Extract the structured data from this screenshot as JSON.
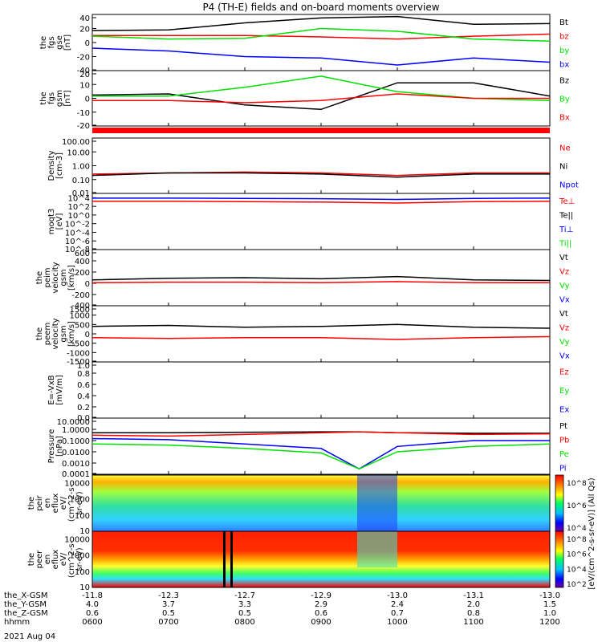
{
  "title": "P4 (TH-E) fields and on-board moments overview",
  "date": "2021 Aug 04",
  "colors": {
    "black": "#000000",
    "red": "#ff0000",
    "green": "#00e000",
    "blue": "#0000ff"
  },
  "chart_data": [
    {
      "type": "line",
      "ylabel": [
        "the",
        "fgs",
        "gse",
        "[nT]"
      ],
      "yticks": [
        "40",
        "20",
        "0",
        "-20",
        "-40"
      ],
      "ylim": [
        -40,
        40
      ],
      "legend": [
        {
          "label": "Bt",
          "color": "black"
        },
        {
          "label": "bz",
          "color": "red"
        },
        {
          "label": "by",
          "color": "green"
        },
        {
          "label": "bx",
          "color": "blue"
        }
      ],
      "x_hours": [
        6.0,
        7.0,
        8.0,
        9.0,
        10.0,
        11.0,
        12.0
      ],
      "series": [
        {
          "name": "Bt",
          "color": "black",
          "values": [
            17,
            18,
            28,
            35,
            37,
            26,
            27
          ]
        },
        {
          "name": "bz",
          "color": "red",
          "values": [
            10,
            10,
            10,
            8,
            5,
            9,
            12
          ]
        },
        {
          "name": "by",
          "color": "green",
          "values": [
            9,
            5,
            6,
            20,
            16,
            5,
            2
          ]
        },
        {
          "name": "bx",
          "color": "blue",
          "values": [
            -8,
            -12,
            -20,
            -22,
            -32,
            -22,
            -28
          ]
        }
      ]
    },
    {
      "type": "line",
      "ylabel": [
        "the",
        "fgs",
        "gsm",
        "[nT]"
      ],
      "yticks": [
        "20",
        "10",
        "0",
        "-10",
        "-20"
      ],
      "ylim": [
        -25,
        25
      ],
      "legend": [
        {
          "label": "Bz",
          "color": "black"
        },
        {
          "label": "By",
          "color": "green"
        },
        {
          "label": "Bx",
          "color": "red"
        }
      ],
      "x_hours": [
        6.0,
        7.0,
        8.0,
        9.0,
        10.0,
        11.0,
        12.0
      ],
      "series": [
        {
          "name": "Bz",
          "color": "black",
          "values": [
            3,
            4,
            -6,
            -10,
            14,
            14,
            2
          ]
        },
        {
          "name": "By",
          "color": "green",
          "values": [
            2,
            2,
            10,
            20,
            6,
            0,
            -2
          ]
        },
        {
          "name": "Bx",
          "color": "red",
          "values": [
            -2,
            -2,
            -4,
            -2,
            4,
            0,
            0
          ]
        }
      ]
    },
    {
      "type": "line",
      "ylabel": [
        "Density",
        "[cm-3]"
      ],
      "yticks": [
        "100.00",
        "10.00",
        "1.00",
        "0.10",
        "0.01"
      ],
      "ylim": [
        0.01,
        100
      ],
      "yscale": "log",
      "legend": [
        {
          "label": "Ne",
          "color": "red"
        },
        {
          "label": "Ni",
          "color": "black"
        },
        {
          "label": "Npot",
          "color": "blue"
        }
      ],
      "x_hours": [
        6.0,
        7.0,
        8.0,
        9.0,
        10.0,
        11.0,
        12.0
      ],
      "series": [
        {
          "name": "Ne",
          "color": "red",
          "values": [
            0.25,
            0.3,
            0.35,
            0.3,
            0.2,
            0.3,
            0.3
          ]
        },
        {
          "name": "Ni",
          "color": "black",
          "values": [
            0.2,
            0.3,
            0.3,
            0.25,
            0.15,
            0.25,
            0.25
          ]
        }
      ]
    },
    {
      "type": "line",
      "ylabel": [
        "moqt3",
        "[eV]"
      ],
      "yticks": [
        "10^4",
        "10^2",
        "10^0",
        "10^-2",
        "10^-4",
        "10^-6",
        "10^-8"
      ],
      "ylim": [
        1e-08,
        100000
      ],
      "yscale": "log",
      "legend": [
        {
          "label": "Te⊥",
          "color": "red"
        },
        {
          "label": "Te||",
          "color": "black"
        },
        {
          "label": "Ti⊥",
          "color": "blue"
        },
        {
          "label": "Ti||",
          "color": "green"
        }
      ],
      "x_hours": [
        6.0,
        7.0,
        8.0,
        9.0,
        10.0,
        11.0,
        12.0
      ],
      "series": [
        {
          "name": "Ti⊥",
          "color": "blue",
          "values": [
            8000,
            8000,
            7000,
            6000,
            4000,
            7000,
            8000
          ]
        },
        {
          "name": "Te⊥",
          "color": "red",
          "values": [
            1500,
            1500,
            1200,
            1000,
            600,
            1200,
            1500
          ]
        }
      ]
    },
    {
      "type": "line",
      "ylabel": [
        "the",
        "peim",
        "velocity",
        "gsm",
        "[km/s]"
      ],
      "yticks": [
        "600",
        "400",
        "200",
        "0",
        "-200",
        "-400"
      ],
      "ylim": [
        -400,
        600
      ],
      "legend": [
        {
          "label": "Vt",
          "color": "black"
        },
        {
          "label": "Vz",
          "color": "red"
        },
        {
          "label": "Vy",
          "color": "green"
        },
        {
          "label": "Vx",
          "color": "blue"
        }
      ],
      "x_hours": [
        6.0,
        7.0,
        8.0,
        9.0,
        10.0,
        11.0,
        12.0
      ],
      "series": [
        {
          "name": "Vt",
          "color": "black",
          "values": [
            60,
            90,
            100,
            80,
            120,
            60,
            50
          ]
        },
        {
          "name": "Vz",
          "color": "red",
          "values": [
            10,
            20,
            20,
            10,
            30,
            10,
            10
          ]
        }
      ]
    },
    {
      "type": "line",
      "ylabel": [
        "the",
        "peem",
        "velocity",
        "gsm",
        "[km/s]"
      ],
      "yticks": [
        "1500",
        "1000",
        "500",
        "0",
        "-500",
        "-1000",
        "-1500"
      ],
      "ylim": [
        -1500,
        1500
      ],
      "legend": [
        {
          "label": "Vt",
          "color": "black"
        },
        {
          "label": "Vz",
          "color": "red"
        },
        {
          "label": "Vy",
          "color": "green"
        },
        {
          "label": "Vx",
          "color": "blue"
        }
      ],
      "x_hours": [
        6.0,
        7.0,
        8.0,
        9.0,
        10.0,
        11.0,
        12.0
      ],
      "series": [
        {
          "name": "Vt",
          "color": "black",
          "values": [
            400,
            450,
            350,
            400,
            500,
            350,
            300
          ]
        },
        {
          "name": "Vz",
          "color": "red",
          "values": [
            -200,
            -250,
            -200,
            -200,
            -300,
            -200,
            -150
          ]
        }
      ]
    },
    {
      "type": "line",
      "ylabel": [
        "E=-VxB",
        "[mV/m]"
      ],
      "yticks": [
        "1.0",
        "0.8",
        "0.6",
        "0.4",
        "0.2",
        "0.0"
      ],
      "ylim": [
        0,
        1
      ],
      "legend": [
        {
          "label": "Ez",
          "color": "red"
        },
        {
          "label": "Ey",
          "color": "green"
        },
        {
          "label": "Ex",
          "color": "blue"
        }
      ],
      "series": []
    },
    {
      "type": "line",
      "ylabel": [
        "Pressure",
        "[nPa]"
      ],
      "yticks": [
        "10.0000",
        "1.0000",
        "0.1000",
        "0.0100",
        "0.0010",
        "0.0001"
      ],
      "ylim": [
        0.0001,
        10
      ],
      "yscale": "log",
      "legend": [
        {
          "label": "Pt",
          "color": "black"
        },
        {
          "label": "Pb",
          "color": "red"
        },
        {
          "label": "Pe",
          "color": "green"
        },
        {
          "label": "Pi",
          "color": "blue"
        }
      ],
      "x_hours": [
        6.0,
        7.0,
        8.0,
        9.0,
        9.5,
        10.0,
        11.0,
        12.0
      ],
      "series": [
        {
          "name": "Pt",
          "color": "black",
          "values": [
            0.5,
            0.5,
            0.55,
            0.6,
            0.6,
            0.5,
            0.45,
            0.45
          ]
        },
        {
          "name": "Pb",
          "color": "red",
          "values": [
            0.3,
            0.25,
            0.35,
            0.5,
            0.6,
            0.5,
            0.35,
            0.4
          ]
        },
        {
          "name": "Pi",
          "color": "blue",
          "values": [
            0.15,
            0.12,
            0.05,
            0.02,
            0.0003,
            0.03,
            0.1,
            0.1
          ]
        },
        {
          "name": "Pe",
          "color": "green",
          "values": [
            0.05,
            0.04,
            0.02,
            0.008,
            0.0003,
            0.01,
            0.03,
            0.05
          ]
        }
      ]
    },
    {
      "type": "heatmap",
      "ylabel": [
        "the",
        "peir",
        "en",
        "eflux",
        "eV/",
        "(cm^2-s-",
        "sr-eV)"
      ],
      "yticks": [
        "10000",
        "1000",
        "100",
        "10"
      ],
      "ylim": [
        10,
        30000
      ],
      "yscale": "log"
    },
    {
      "type": "heatmap",
      "ylabel": [
        "the",
        "peer",
        "en",
        "eflux",
        "eV/",
        "(cm^2-s-",
        "sr-eV)"
      ],
      "yticks": [
        "10000",
        "1000",
        "100",
        "10"
      ],
      "ylim": [
        10,
        30000
      ],
      "yscale": "log"
    }
  ],
  "colorbar": {
    "top": {
      "ticks": [
        "10^8",
        "10^6",
        "10^4"
      ],
      "label": "eV/(cm^2-s-sr-eV)"
    },
    "bottom": {
      "ticks": [
        "10^8",
        "10^6",
        "10^4",
        "10^2"
      ],
      "label": "eV/(cm^2-s-sr-eV) (All Qs)"
    },
    "combined_label": "[eV/(cm^2-s-sr-eV)] (All Qs)"
  },
  "x_axis": {
    "labels": [
      "the_X-GSM",
      "the_Y-GSM",
      "the_Z-GSM",
      "hhmm"
    ],
    "columns": [
      [
        "-11.8",
        "4.0",
        "0.6",
        "0600"
      ],
      [
        "-12.3",
        "3.7",
        "0.5",
        "0700"
      ],
      [
        "-12.7",
        "3.3",
        "0.5",
        "0800"
      ],
      [
        "-12.9",
        "2.9",
        "0.6",
        "0900"
      ],
      [
        "-13.0",
        "2.4",
        "0.7",
        "1000"
      ],
      [
        "-13.1",
        "2.0",
        "0.8",
        "1100"
      ],
      [
        "-13.0",
        "1.5",
        "1.0",
        "1200"
      ]
    ]
  }
}
